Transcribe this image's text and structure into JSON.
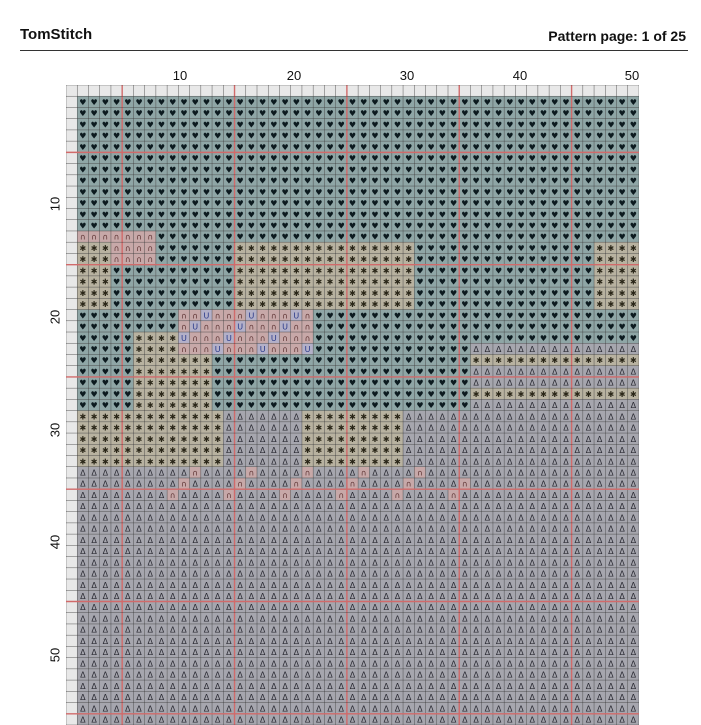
{
  "header": {
    "brand": "TomStitch",
    "page_label": "Pattern page: 1 of 25"
  },
  "axis": {
    "top_labels": [
      "10",
      "20",
      "30",
      "40",
      "50"
    ],
    "left_labels": [
      "10",
      "20",
      "30",
      "40",
      "50"
    ]
  },
  "palette": {
    "blue_bg": "#8fa6a6",
    "sand_bg": "#b8b2a0",
    "gray_bg": "#a6a6ae",
    "pink_bg": "#c7a8a8",
    "lilac_bg": "#b3b0c8",
    "grid_line": "#333333",
    "major_line": "#d16a6a"
  }
}
